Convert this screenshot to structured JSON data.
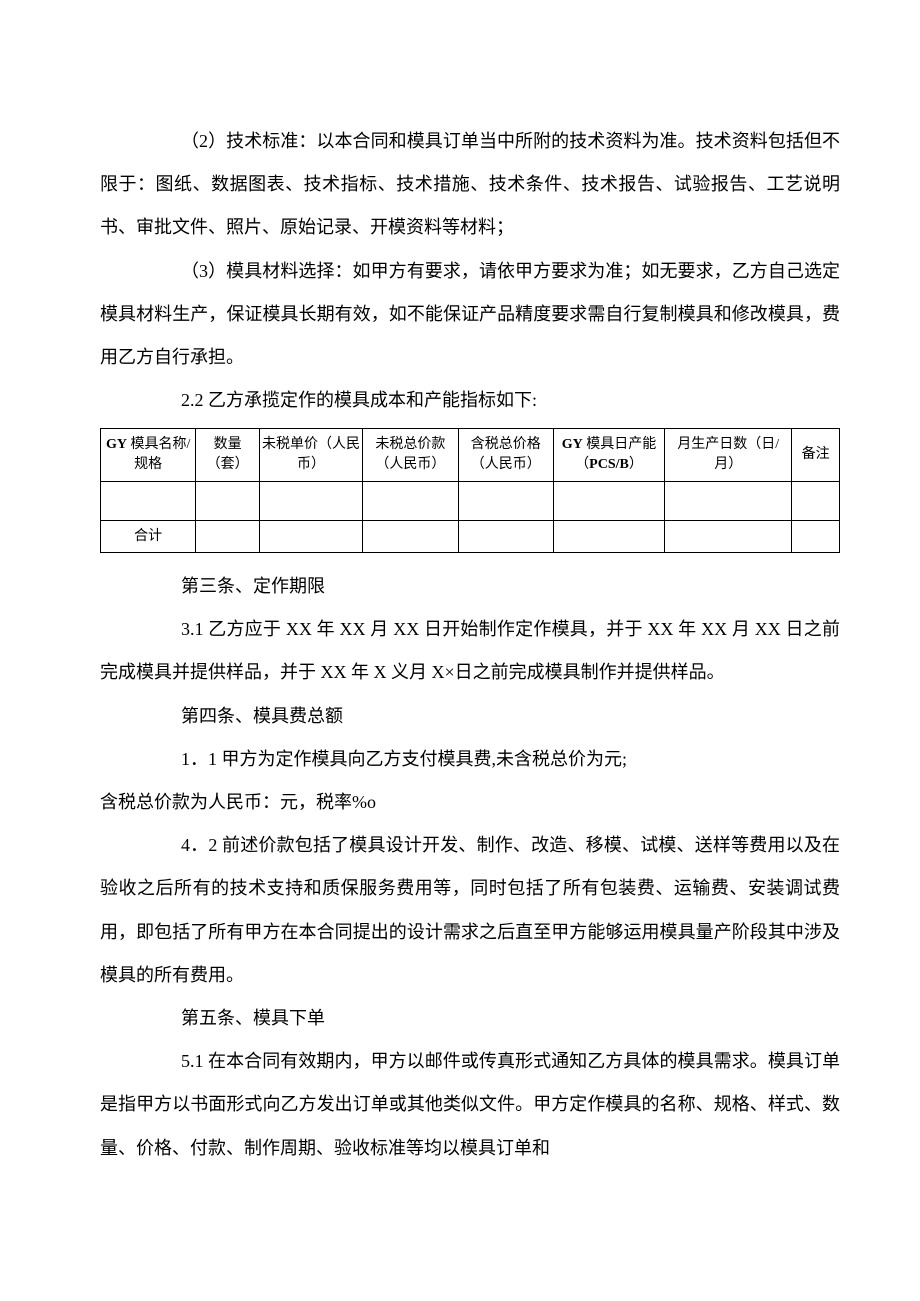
{
  "paragraphs": {
    "p1": "（2）技术标准：以本合同和模具订单当中所附的技术资料为准。技术资料包括但不限于：图纸、数据图表、技术指标、技术措施、技术条件、技术报告、试验报告、工艺说明书、审批文件、照片、原始记录、开模资料等材料；",
    "p2": "（3）模具材料选择：如甲方有要求，请依甲方要求为准；如无要求，乙方自己选定模具材料生产，保证模具长期有效，如不能保证产品精度要求需自行复制模具和修改模具，费用乙方自行承担。",
    "p3": "2.2 乙方承揽定作的模具成本和产能指标如下:",
    "p4_title": "第三条、定作期限",
    "p5": "3.1 乙方应于 XX 年 XX 月 XX 日开始制作定作模具，并于 XX 年 XX 月 XX 日之前完成模具并提供样品，并于 XX 年 X 义月 X×日之前完成模具制作并提供样品。",
    "p6_title": "第四条、模具费总额",
    "p7": "1．1 甲方为定作模具向乙方支付模具费,未含税总价为元;",
    "p8": "含税总价款为人民币：元，税率%o",
    "p9": "4．2 前述价款包括了模具设计开发、制作、改造、移模、试模、送样等费用以及在验收之后所有的技术支持和质保服务费用等，同时包括了所有包装费、运输费、安装调试费用，即包括了所有甲方在本合同提出的设计需求之后直至甲方能够运用模具量产阶段其中涉及模具的所有费用。",
    "p10_title": "第五条、模具下单",
    "p11": "5.1 在本合同有效期内，甲方以邮件或传真形式通知乙方具体的模具需求。模具订单是指甲方以书面形式向乙方发出订单或其他类似文件。甲方定作模具的名称、规格、样式、数量、价格、付款、制作周期、验收标准等均以模具订单和"
  },
  "table": {
    "headers": {
      "h1a": "GY",
      "h1b": " 模具名称/规格",
      "h2": "数量（套）",
      "h3": "未税单价（人民币）",
      "h4": "未税总价款（人民币）",
      "h5": "含税总价格（人民币）",
      "h6a": "GY",
      "h6b": " 模具日产能（",
      "h6c": "PCS/B",
      "h6d": "）",
      "h7": "月生产日数（日/月）",
      "h8": "备注"
    },
    "footer": "合计"
  }
}
